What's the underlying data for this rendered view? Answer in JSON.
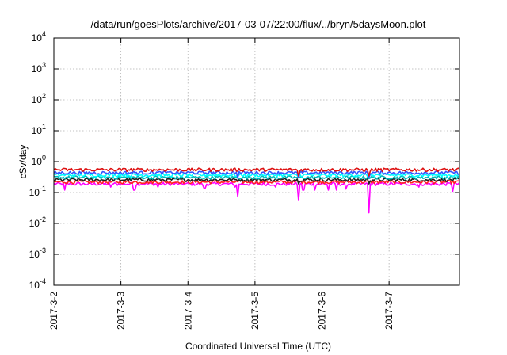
{
  "chart_data": {
    "type": "line",
    "title": "/data/run/goesPlots/archive/2017-03-07/22:00/flux/../bryn/5daysMoon.plot",
    "xlabel": "Coordinated Universal Time (UTC)",
    "ylabel": "cSv/day",
    "x_tick_labels": [
      "2017-3-2",
      "2017-3-3",
      "2017-3-4",
      "2017-3-5",
      "2017-3-6",
      "2017-3-7"
    ],
    "x_start": "2017-03-02",
    "xlim_days": [
      0,
      6.05
    ],
    "y_scale": "log",
    "ylim": [
      0.0001,
      10000
    ],
    "y_ticks": [
      {
        "value": 0.0001,
        "base": "10",
        "exp": "-4"
      },
      {
        "value": 0.001,
        "base": "10",
        "exp": "-3"
      },
      {
        "value": 0.01,
        "base": "10",
        "exp": "-2"
      },
      {
        "value": 0.1,
        "base": "10",
        "exp": "-1"
      },
      {
        "value": 1,
        "base": "10",
        "exp": "0"
      },
      {
        "value": 10,
        "base": "10",
        "exp": "1"
      },
      {
        "value": 100,
        "base": "10",
        "exp": "2"
      },
      {
        "value": 1000,
        "base": "10",
        "exp": "3"
      },
      {
        "value": 10000,
        "base": "10",
        "exp": "4"
      }
    ],
    "grid": true,
    "legend": "none",
    "series": [
      {
        "color": "#ff00ff",
        "baseline": 0.19,
        "dips": [
          {
            "day": 0.16,
            "value": 0.12
          },
          {
            "day": 0.85,
            "value": 0.15
          },
          {
            "day": 1.2,
            "value": 0.12
          },
          {
            "day": 1.55,
            "value": 0.15
          },
          {
            "day": 2.25,
            "value": 0.14
          },
          {
            "day": 2.7,
            "value": 0.15
          },
          {
            "day": 2.75,
            "value": 0.075
          },
          {
            "day": 3.3,
            "value": 0.15
          },
          {
            "day": 3.65,
            "value": 0.055
          },
          {
            "day": 3.72,
            "value": 0.12
          },
          {
            "day": 3.9,
            "value": 0.12
          },
          {
            "day": 4.1,
            "value": 0.12
          },
          {
            "day": 4.22,
            "value": 0.12
          },
          {
            "day": 4.35,
            "value": 0.13
          },
          {
            "day": 4.7,
            "value": 0.022
          },
          {
            "day": 5.45,
            "value": 0.15
          },
          {
            "day": 5.95,
            "value": 0.11
          }
        ]
      },
      {
        "color": "#ff2020",
        "baseline": 0.22,
        "dips": []
      },
      {
        "color": "#202020",
        "baseline": 0.26,
        "dips": [
          {
            "day": 3.65,
            "value": 0.19
          },
          {
            "day": 4.7,
            "value": 0.19
          }
        ]
      },
      {
        "color": "#00bbbb",
        "baseline": 0.31,
        "dips": []
      },
      {
        "color": "#00ffff",
        "baseline": 0.37,
        "dips": []
      },
      {
        "color": "#3355ff",
        "baseline": 0.44,
        "dips": [
          {
            "day": 2.75,
            "value": 0.3
          },
          {
            "day": 3.65,
            "value": 0.3
          },
          {
            "day": 4.7,
            "value": 0.3
          }
        ]
      },
      {
        "color": "#dd1111",
        "baseline": 0.55,
        "dips": [
          {
            "day": 3.65,
            "value": 0.35
          },
          {
            "day": 4.7,
            "value": 0.35
          }
        ]
      }
    ]
  }
}
